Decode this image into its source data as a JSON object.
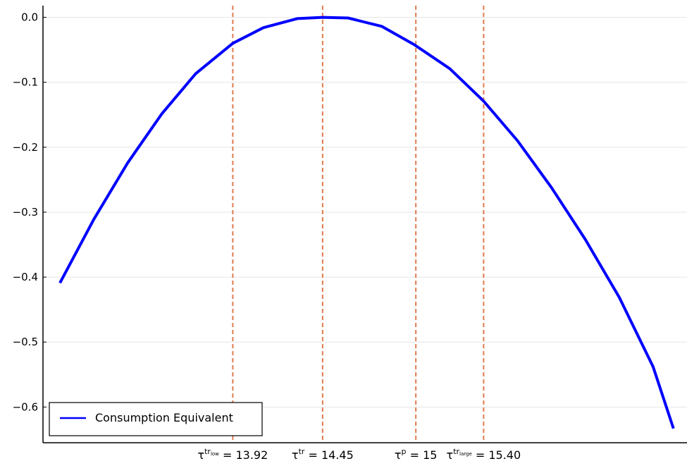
{
  "chart_data": {
    "type": "line",
    "title": "",
    "xlabel": "",
    "ylabel": "",
    "xlim": [
      12.8,
      16.6
    ],
    "ylim": [
      -0.655,
      0.018
    ],
    "grid": "horizontal",
    "legend_position": "bottom-left",
    "yticks": [
      0.0,
      -0.1,
      -0.2,
      -0.3,
      -0.4,
      -0.5,
      -0.6
    ],
    "ytick_labels": [
      "0.0",
      "−0.1",
      "−0.2",
      "−0.3",
      "−0.4",
      "−0.5",
      "−0.6"
    ],
    "colors": {
      "series": "#0000ff",
      "vlines": "#e07b50",
      "axis": "#000000",
      "grid": "#e5e5e5"
    },
    "series": [
      {
        "name": "Consumption Equivalent",
        "x": [
          12.9,
          13.1,
          13.3,
          13.5,
          13.7,
          13.92,
          14.1,
          14.3,
          14.45,
          14.6,
          14.8,
          14.99,
          15.2,
          15.4,
          15.6,
          15.8,
          16.0,
          16.2,
          16.4,
          16.52
        ],
        "y": [
          -0.409,
          -0.311,
          -0.224,
          -0.149,
          -0.087,
          -0.04,
          -0.016,
          -0.002,
          0.0,
          -0.001,
          -0.014,
          -0.042,
          -0.079,
          -0.129,
          -0.19,
          -0.262,
          -0.342,
          -0.431,
          -0.538,
          -0.633
        ]
      }
    ],
    "vlines": [
      {
        "x": 13.92,
        "label": {
          "base": "τ",
          "sup": "tr",
          "subsup": "low",
          "value": "= 13.92"
        }
      },
      {
        "x": 14.45,
        "label": {
          "base": "τ",
          "sup": "tr",
          "subsup": "",
          "value": "= 14.45"
        }
      },
      {
        "x": 15.0,
        "label": {
          "base": "τ",
          "sup": "p",
          "subsup": "",
          "value": "= 15"
        }
      },
      {
        "x": 15.4,
        "label": {
          "base": "τ",
          "sup": "tr",
          "subsup": "large",
          "value": "= 15.40"
        }
      }
    ]
  }
}
